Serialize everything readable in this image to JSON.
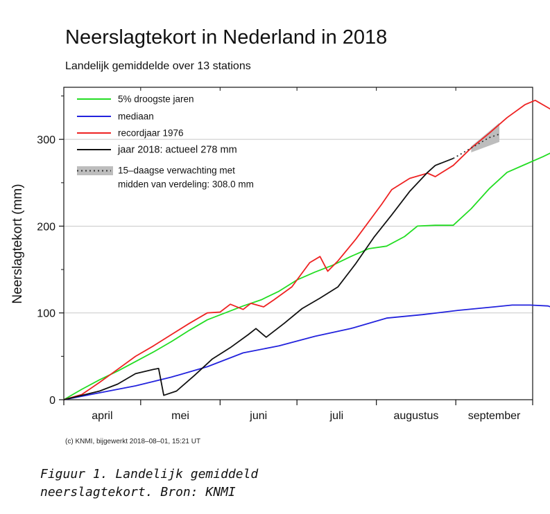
{
  "chart_data": {
    "type": "line",
    "title": "Neerslagtekort in Nederland in 2018",
    "subtitle": "Landelijk gemiddelde over 13 stations",
    "ylabel": "Neerslagtekort (mm)",
    "ylim": [
      0,
      360
    ],
    "yticks": [
      0,
      100,
      200,
      300
    ],
    "xlim": [
      "04-01",
      "09-30"
    ],
    "month_labels": [
      "april",
      "mei",
      "juni",
      "juli",
      "augustus",
      "september"
    ],
    "grid": true,
    "legend_position": "top-left",
    "legend_entries": {
      "droog5": "5% droogste jaren",
      "mediaan": "mediaan",
      "record1976": "recordjaar 1976",
      "jaar2018": "jaar 2018: actueel 278 mm",
      "verwachting_line1": "15–daagse verwachting met",
      "verwachting_line2": "midden van verdeling: 308.0 mm"
    },
    "series": [
      {
        "name": "5% droogste jaren",
        "color": "#22dd22",
        "points": [
          [
            "04-01",
            0
          ],
          [
            "04-08",
            12
          ],
          [
            "04-15",
            23
          ],
          [
            "04-22",
            33
          ],
          [
            "04-29",
            44
          ],
          [
            "05-06",
            55
          ],
          [
            "05-13",
            67
          ],
          [
            "05-20",
            80
          ],
          [
            "05-27",
            92
          ],
          [
            "06-03",
            100
          ],
          [
            "06-10",
            108
          ],
          [
            "06-17",
            115
          ],
          [
            "06-24",
            125
          ],
          [
            "07-01",
            138
          ],
          [
            "07-08",
            147
          ],
          [
            "07-15",
            155
          ],
          [
            "07-22",
            165
          ],
          [
            "07-29",
            174
          ],
          [
            "08-05",
            177
          ],
          [
            "08-12",
            188
          ],
          [
            "08-17",
            200
          ],
          [
            "08-24",
            201
          ],
          [
            "08-31",
            201
          ],
          [
            "09-07",
            220
          ],
          [
            "09-14",
            243
          ],
          [
            "09-21",
            262
          ],
          [
            "09-28",
            271
          ],
          [
            "10-05",
            280
          ],
          [
            "10-12",
            290
          ],
          [
            "10-16",
            289
          ],
          [
            "10-23",
            276
          ]
        ]
      },
      {
        "name": "mediaan",
        "color": "#2222dd",
        "points": [
          [
            "04-01",
            0
          ],
          [
            "04-15",
            8
          ],
          [
            "04-29",
            16
          ],
          [
            "05-13",
            26
          ],
          [
            "05-27",
            38
          ],
          [
            "06-10",
            54
          ],
          [
            "06-24",
            62
          ],
          [
            "07-08",
            73
          ],
          [
            "07-22",
            82
          ],
          [
            "08-05",
            94
          ],
          [
            "08-19",
            98
          ],
          [
            "09-02",
            103
          ],
          [
            "09-16",
            107
          ],
          [
            "09-23",
            109
          ],
          [
            "09-30",
            109
          ],
          [
            "10-07",
            108
          ],
          [
            "10-14",
            101
          ],
          [
            "10-21",
            92
          ],
          [
            "10-28",
            91
          ],
          [
            "11-04",
            90
          ],
          [
            "11-11",
            88
          ]
        ]
      },
      {
        "name": "recordjaar 1976",
        "color": "#ee2222",
        "points": [
          [
            "04-01",
            0
          ],
          [
            "04-08",
            6
          ],
          [
            "04-15",
            20
          ],
          [
            "04-22",
            35
          ],
          [
            "04-29",
            50
          ],
          [
            "05-06",
            62
          ],
          [
            "05-13",
            75
          ],
          [
            "05-20",
            88
          ],
          [
            "05-27",
            100
          ],
          [
            "06-01",
            101
          ],
          [
            "06-05",
            110
          ],
          [
            "06-10",
            104
          ],
          [
            "06-13",
            111
          ],
          [
            "06-18",
            107
          ],
          [
            "06-22",
            115
          ],
          [
            "06-29",
            130
          ],
          [
            "07-06",
            158
          ],
          [
            "07-10",
            165
          ],
          [
            "07-13",
            148
          ],
          [
            "07-17",
            160
          ],
          [
            "07-24",
            185
          ],
          [
            "08-03",
            225
          ],
          [
            "08-07",
            242
          ],
          [
            "08-14",
            255
          ],
          [
            "08-21",
            261
          ],
          [
            "08-24",
            257
          ],
          [
            "08-31",
            270
          ],
          [
            "09-07",
            290
          ],
          [
            "09-14",
            307
          ],
          [
            "09-21",
            325
          ],
          [
            "09-28",
            340
          ],
          [
            "10-02",
            345
          ],
          [
            "10-09",
            333
          ],
          [
            "10-16",
            327
          ],
          [
            "10-23",
            320
          ],
          [
            "10-30",
            318
          ],
          [
            "11-06",
            326
          ],
          [
            "11-11",
            322
          ]
        ]
      },
      {
        "name": "jaar 2018",
        "color": "#111111",
        "points": [
          [
            "04-01",
            0
          ],
          [
            "04-08",
            5
          ],
          [
            "04-15",
            10
          ],
          [
            "04-22",
            18
          ],
          [
            "04-29",
            30
          ],
          [
            "05-06",
            35
          ],
          [
            "05-08",
            36
          ],
          [
            "05-10",
            5
          ],
          [
            "05-15",
            10
          ],
          [
            "05-22",
            28
          ],
          [
            "05-29",
            47
          ],
          [
            "06-05",
            60
          ],
          [
            "06-12",
            75
          ],
          [
            "06-15",
            82
          ],
          [
            "06-19",
            72
          ],
          [
            "06-26",
            88
          ],
          [
            "07-03",
            105
          ],
          [
            "07-10",
            117
          ],
          [
            "07-17",
            130
          ],
          [
            "07-24",
            157
          ],
          [
            "07-31",
            187
          ],
          [
            "08-07",
            213
          ],
          [
            "08-14",
            240
          ],
          [
            "08-21",
            262
          ],
          [
            "08-24",
            270
          ],
          [
            "08-31",
            278
          ]
        ]
      },
      {
        "name": "15-daagse verwachting",
        "color": "#333333",
        "style": "dotted",
        "points": [
          [
            "08-31",
            278
          ],
          [
            "09-07",
            290
          ],
          [
            "09-14",
            302
          ],
          [
            "09-18",
            306
          ]
        ],
        "band": [
          [
            "09-07",
            285,
            292
          ],
          [
            "09-18",
            297,
            319
          ]
        ]
      }
    ]
  },
  "credit": "(c) KNMI, bijgewerkt 2018–08–01, 15:21 UT",
  "caption_line1": "Figuur 1. Landelijk gemiddeld",
  "caption_line2": "neerslagtekort. Bron: KNMI"
}
